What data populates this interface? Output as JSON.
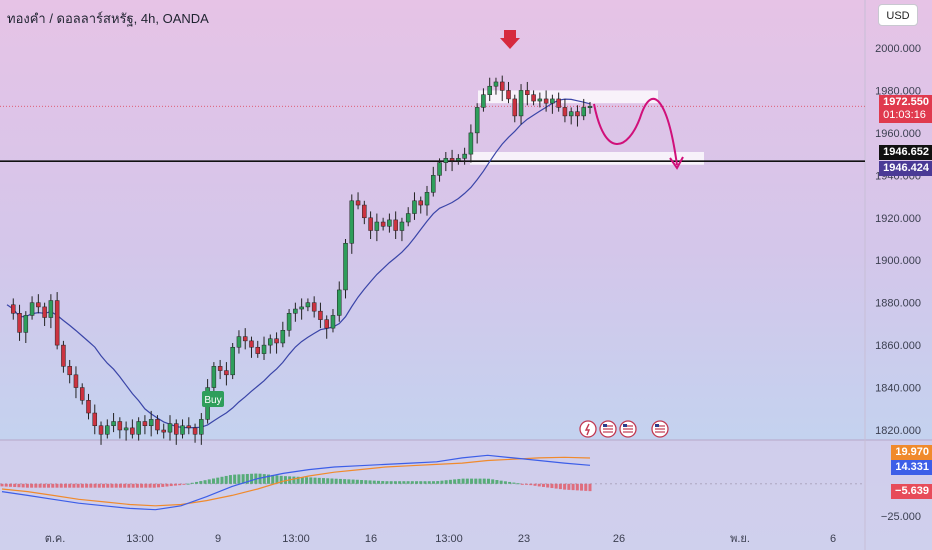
{
  "header": {
    "title": "ทองคำ / ดอลลาร์สหรัฐ, 4h, OANDA",
    "currency_button": "USD"
  },
  "colors": {
    "up": "#2e9e5b",
    "down": "#cc3340",
    "ma": "#3a45a8",
    "macd": "#3c5ee8",
    "signal": "#f08a2c",
    "arrow": "#d0107a"
  },
  "price_labels": {
    "last": "1972.550",
    "countdown": "01:03:16",
    "line": "1946.652",
    "ma": "1946.424"
  },
  "macd_labels": {
    "signal": "19.970",
    "macd": "14.331",
    "hist": "−5.639",
    "axis_low": "−25.000"
  },
  "buy_label": "Buy",
  "icons": [
    "lightning-event-icon",
    "us-flag-icon",
    "us-flag-icon",
    "us-flag-icon"
  ],
  "chart_data": {
    "type": "candlestick",
    "ylim": [
      1808,
      2010
    ],
    "y_ticks": [
      "2000.000",
      "1980.000",
      "1960.000",
      "1940.000",
      "1920.000",
      "1900.000",
      "1880.000",
      "1860.000",
      "1840.000",
      "1820.000"
    ],
    "x_ticks": [
      "ต.ค.",
      "13:00",
      "9",
      "13:00",
      "16",
      "13:00",
      "23",
      "26",
      "พ.ย.",
      "6"
    ],
    "horizontal_line": 1946.652,
    "last_price": 1972.55,
    "moving_average_last": 1946.424,
    "resistance_zone": [
      1974,
      1980
    ],
    "support_zone": [
      1945,
      1951
    ],
    "close_path": [
      1879,
      1875,
      1866,
      1874,
      1880,
      1878,
      1873,
      1881,
      1860,
      1850,
      1846,
      1840,
      1834,
      1828,
      1822,
      1818,
      1822,
      1824,
      1820,
      1821,
      1818,
      1824,
      1822,
      1825,
      1820,
      1819,
      1823,
      1818,
      1822,
      1821,
      1818,
      1825,
      1840,
      1850,
      1848,
      1846,
      1859,
      1864,
      1862,
      1859,
      1856,
      1860,
      1863,
      1861,
      1867,
      1875,
      1877,
      1878,
      1880,
      1876,
      1872,
      1868,
      1874,
      1886,
      1908,
      1928,
      1926,
      1920,
      1914,
      1918,
      1916,
      1919,
      1914,
      1918,
      1922,
      1928,
      1926,
      1932,
      1940,
      1946,
      1948,
      1947,
      1948,
      1950,
      1960,
      1972,
      1978,
      1982,
      1984,
      1980,
      1976,
      1968,
      1980,
      1978,
      1975,
      1976,
      1974,
      1976,
      1972,
      1968,
      1970,
      1968,
      1972,
      1972.55
    ],
    "macd": {
      "series": [
        {
          "name": "MACD",
          "values": [
            -6,
            -9,
            -12,
            -15,
            -17,
            -19,
            -20,
            -17,
            -10,
            -2,
            4,
            8,
            11,
            13,
            14,
            15,
            16,
            17,
            20,
            22,
            20,
            18,
            16,
            14.3
          ]
        },
        {
          "name": "Signal",
          "values": [
            -4,
            -6,
            -9,
            -12,
            -14,
            -16,
            -17,
            -16,
            -13,
            -9,
            -4,
            2,
            6,
            9,
            11,
            13,
            14,
            15,
            16,
            18,
            19,
            20,
            20.5,
            19.97
          ]
        }
      ]
    }
  }
}
